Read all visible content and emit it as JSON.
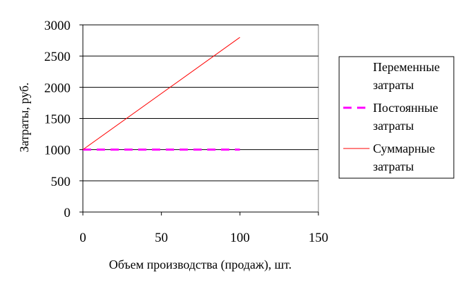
{
  "chart_data": {
    "type": "line",
    "title": "",
    "xlabel": "Объем производства (продаж), шт.",
    "ylabel": "Затраты, руб.",
    "xlim": [
      0,
      150
    ],
    "ylim": [
      0,
      3000
    ],
    "x_ticks": [
      "0",
      "50",
      "100",
      "150"
    ],
    "y_ticks": [
      "0",
      "500",
      "1000",
      "1500",
      "2000",
      "2500",
      "3000"
    ],
    "grid": "horizontal",
    "legend_position": "right",
    "series": [
      {
        "name": "Переменные затраты",
        "legend_lines": [
          "Переменные",
          "затраты"
        ],
        "style": "none",
        "color": "#000000",
        "x": [],
        "y": []
      },
      {
        "name": "Постоянные затраты",
        "legend_lines": [
          "Постоянные",
          "затраты"
        ],
        "style": "dashed",
        "color": "#ff00ff",
        "x": [
          0,
          100
        ],
        "y": [
          1000,
          1000
        ]
      },
      {
        "name": "Суммарные затраты",
        "legend_lines": [
          "Суммарные",
          "затраты"
        ],
        "style": "solid",
        "color": "#ff0000",
        "x": [
          0,
          100
        ],
        "y": [
          1000,
          2800
        ]
      }
    ]
  }
}
